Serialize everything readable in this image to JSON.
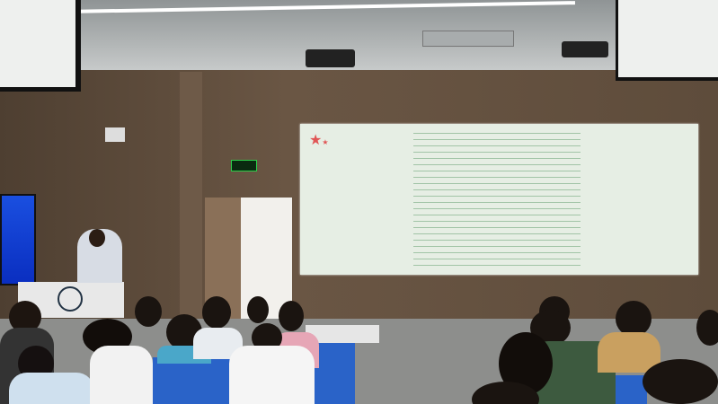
{
  "scene": {
    "colors": {
      "wall": "#5e4c3b",
      "ceiling": "#b9bcbc",
      "screen": "#e8efe6",
      "desk": "#2a63c8",
      "floor": "#8d8e8c",
      "exit_sign": "#2bd14a"
    },
    "icons": [
      "star-icon",
      "projector-icon",
      "exit-sign-icon",
      "camera-icon",
      "emblem-icon"
    ]
  }
}
